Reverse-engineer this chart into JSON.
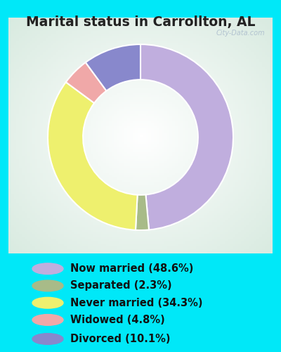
{
  "title": "Marital status in Carrollton, AL",
  "slices": [
    48.6,
    2.3,
    34.3,
    4.8,
    10.1
  ],
  "labels": [
    "Now married (48.6%)",
    "Separated (2.3%)",
    "Never married (34.3%)",
    "Widowed (4.8%)",
    "Divorced (10.1%)"
  ],
  "colors": [
    "#c0aede",
    "#a8bb88",
    "#eef06e",
    "#f0a8a8",
    "#8888cc"
  ],
  "bg_color_outer": "#00e8f8",
  "title_color": "#222222",
  "title_fontsize": 13.5,
  "legend_fontsize": 10.5,
  "donut_width": 0.38,
  "start_angle": 90,
  "watermark": "City-Data.com"
}
